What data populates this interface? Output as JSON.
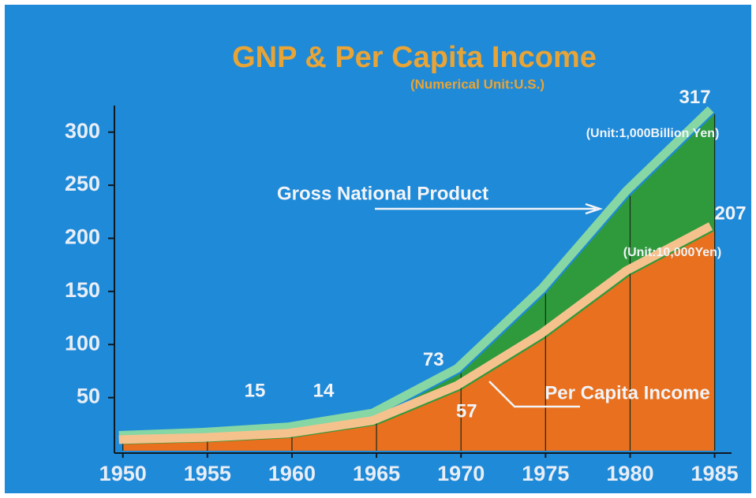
{
  "chart_data": {
    "type": "area",
    "title": "GNP & Per Capita Income",
    "subtitle": "(Numerical Unit:U.S.)",
    "x": [
      1950,
      1955,
      1960,
      1965,
      1970,
      1975,
      1980,
      1985
    ],
    "xlim": [
      1949.5,
      1986
    ],
    "xticks": [
      1950,
      1955,
      1960,
      1965,
      1970,
      1975,
      1980,
      1985
    ],
    "ylim": [
      0,
      325
    ],
    "yticks": [
      50,
      100,
      150,
      200,
      250,
      300
    ],
    "series": [
      {
        "name": "Gross National Product",
        "color": "#2e9a3c",
        "band_color": "#86d7a4",
        "unit": "(Unit:1,000Billion Yen)",
        "values": [
          10,
          13,
          18,
          31,
          73,
          148,
          240,
          317
        ],
        "value_labels": [
          null,
          null,
          null,
          null,
          "73",
          null,
          null,
          "317"
        ]
      },
      {
        "name": "Per Capita Income",
        "color": "#e8701e",
        "band_color": "#f5c28e",
        "unit": "(Unit:10,000Yen)",
        "values": [
          6,
          8,
          12,
          24,
          57,
          106,
          165,
          207
        ],
        "value_labels": [
          null,
          null,
          null,
          null,
          "57",
          null,
          null,
          "207"
        ]
      }
    ],
    "annotations": [
      "15",
      "14"
    ]
  }
}
